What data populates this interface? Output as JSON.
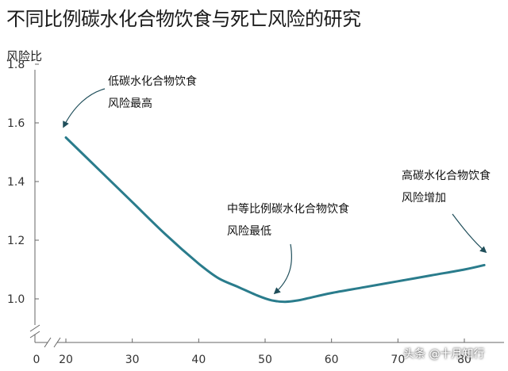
{
  "title": "不同比例碳水化合物饮食与死亡风险的研究",
  "chart_data": {
    "type": "line",
    "title": "不同比例碳水化合物饮食与死亡风险的研究",
    "xlabel": "",
    "ylabel": "风险比",
    "x_ticks": [
      "0",
      "20",
      "30",
      "40",
      "50",
      "60",
      "70",
      "80"
    ],
    "y_ticks": [
      "1.0",
      "1.2",
      "1.4",
      "1.6",
      "1.8"
    ],
    "xlim": [
      15,
      85
    ],
    "ylim": [
      0.87,
      1.84
    ],
    "axis_break": true,
    "grid": false,
    "series": [
      {
        "color": "#2a7c8c",
        "x": [
          20,
          25,
          30,
          35,
          40,
          43,
          46,
          49,
          51,
          53,
          55,
          57,
          60,
          65,
          70,
          75,
          80,
          83
        ],
        "y": [
          1.55,
          1.44,
          1.33,
          1.22,
          1.12,
          1.07,
          1.04,
          1.01,
          0.995,
          0.99,
          0.995,
          1.005,
          1.02,
          1.04,
          1.06,
          1.08,
          1.1,
          1.115
        ]
      }
    ],
    "annotations": [
      {
        "lines": [
          "低碳水化合物饮食",
          "风险最高"
        ],
        "target": [
          20,
          1.55
        ]
      },
      {
        "lines": [
          "中等比例碳水化合物饮食",
          "风险最低"
        ],
        "target": [
          52,
          1.0
        ]
      },
      {
        "lines": [
          "高碳水化合物饮食",
          "风险增加"
        ],
        "target": [
          82,
          1.115
        ]
      }
    ]
  },
  "watermark": "头条 @十月知行",
  "colors": {
    "line": "#2a7c8c",
    "axis": "#666666"
  }
}
